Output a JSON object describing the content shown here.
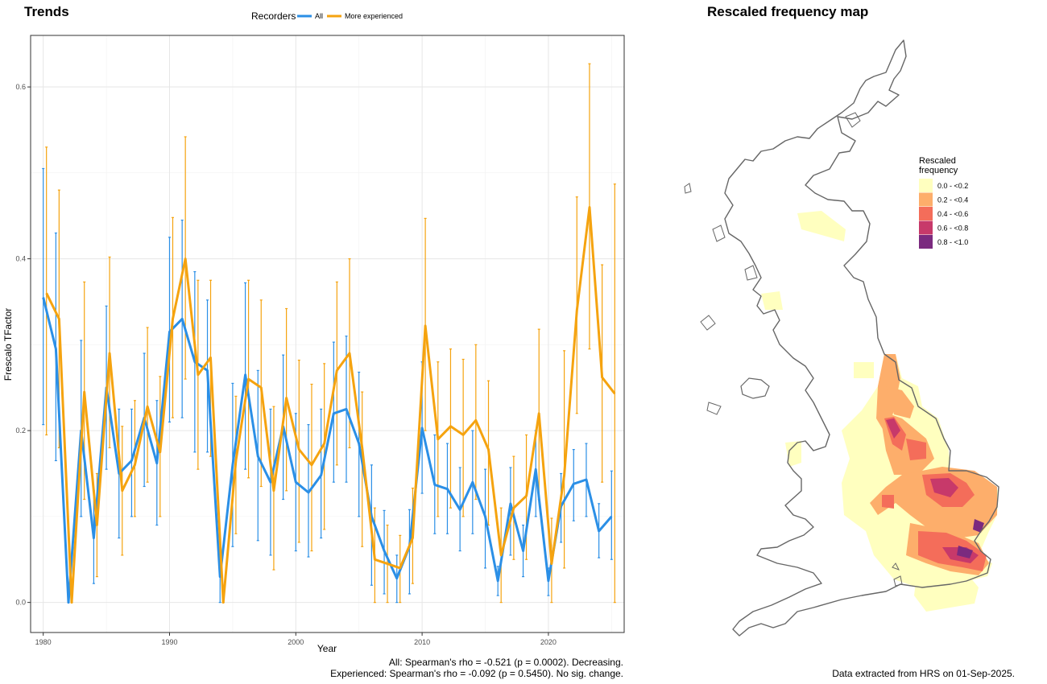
{
  "trends": {
    "title": "Trends",
    "caption_line1": "All: Spearman's rho = -0.521 (p = 0.0002). Decreasing.",
    "caption_line2": "Experienced: Spearman's rho = -0.092 (p = 0.5450). No sig. change."
  },
  "map": {
    "title": "Rescaled frequency map",
    "legend_title_line1": "Rescaled",
    "legend_title_line2": "frequency",
    "legend": [
      {
        "label": "0.0 - <0.2",
        "color": "#ffffbf"
      },
      {
        "label": "0.2 - <0.4",
        "color": "#fdae6b"
      },
      {
        "label": "0.4 - <0.6",
        "color": "#f46d5a"
      },
      {
        "label": "0.6 - <0.8",
        "color": "#c7396a"
      },
      {
        "label": "0.8 - <1.0",
        "color": "#7b2a7f"
      }
    ],
    "caption": "Data extracted from HRS on 01-Sep-2025."
  },
  "chart_data": {
    "type": "line",
    "xlabel": "Year",
    "ylabel": "Frescalo TFactor",
    "xlim": [
      1979,
      2026
    ],
    "ylim": [
      -0.035,
      0.66
    ],
    "x_ticks": [
      1980,
      1990,
      2000,
      2010,
      2020
    ],
    "y_ticks": [
      0.0,
      0.2,
      0.4,
      0.6
    ],
    "y_tick_labels": [
      "0.0",
      "0.2",
      "0.4",
      "0.6"
    ],
    "grid": true,
    "legend_title": "Recorders",
    "legend_position": "top",
    "x": [
      1980,
      1981,
      1982,
      1983,
      1984,
      1985,
      1986,
      1987,
      1988,
      1989,
      1990,
      1991,
      1992,
      1993,
      1994,
      1995,
      1996,
      1997,
      1998,
      1999,
      2000,
      2001,
      2002,
      2003,
      2004,
      2005,
      2006,
      2007,
      2008,
      2009,
      2010,
      2011,
      2012,
      2013,
      2014,
      2015,
      2016,
      2017,
      2018,
      2019,
      2020,
      2021,
      2022,
      2023,
      2024,
      2025
    ],
    "series": [
      {
        "name": "All",
        "color": "#2b8fe6",
        "values": [
          0.355,
          0.295,
          0.0,
          0.2,
          0.075,
          0.25,
          0.15,
          0.165,
          0.215,
          0.162,
          0.315,
          0.33,
          0.28,
          0.27,
          0.03,
          0.16,
          0.265,
          0.17,
          0.14,
          0.205,
          0.14,
          0.128,
          0.148,
          0.22,
          0.225,
          0.185,
          0.1,
          0.06,
          0.028,
          0.065,
          0.203,
          0.137,
          0.132,
          0.108,
          0.14,
          0.1,
          0.025,
          0.115,
          0.06,
          0.155,
          0.025,
          0.112,
          0.138,
          0.143,
          0.083,
          0.1
        ],
        "lower": [
          0.207,
          0.165,
          0.0,
          0.1,
          0.022,
          0.155,
          0.075,
          0.1,
          0.135,
          0.09,
          0.21,
          0.215,
          0.175,
          0.175,
          0.0,
          0.065,
          0.155,
          0.072,
          0.055,
          0.12,
          0.06,
          0.053,
          0.075,
          0.14,
          0.14,
          0.1,
          0.02,
          0.01,
          0.0,
          0.01,
          0.127,
          0.08,
          0.08,
          0.06,
          0.08,
          0.04,
          0.008,
          0.055,
          0.03,
          0.1,
          0.008,
          0.07,
          0.095,
          0.1,
          0.052,
          0.05
        ],
        "upper": [
          0.505,
          0.43,
          0.0,
          0.305,
          0.13,
          0.345,
          0.225,
          0.225,
          0.29,
          0.235,
          0.425,
          0.445,
          0.385,
          0.352,
          0.065,
          0.255,
          0.372,
          0.27,
          0.225,
          0.288,
          0.22,
          0.207,
          0.225,
          0.303,
          0.31,
          0.268,
          0.16,
          0.107,
          0.055,
          0.108,
          0.28,
          0.195,
          0.185,
          0.157,
          0.2,
          0.155,
          0.042,
          0.157,
          0.09,
          0.2,
          0.04,
          0.15,
          0.178,
          0.185,
          0.115,
          0.153
        ]
      },
      {
        "name": "More experienced",
        "color": "#f5a30f",
        "values": [
          0.36,
          0.33,
          0.0,
          0.245,
          0.09,
          0.29,
          0.13,
          0.16,
          0.228,
          0.175,
          0.33,
          0.4,
          0.265,
          0.285,
          0.0,
          0.165,
          0.26,
          0.25,
          0.13,
          0.238,
          0.178,
          0.16,
          0.185,
          0.27,
          0.29,
          0.18,
          0.05,
          0.045,
          0.04,
          0.075,
          0.322,
          0.19,
          0.205,
          0.195,
          0.212,
          0.178,
          0.055,
          0.11,
          0.124,
          0.22,
          0.045,
          0.148,
          0.34,
          0.46,
          0.262,
          0.243
        ],
        "lower": [
          0.195,
          0.18,
          0.0,
          0.12,
          0.03,
          0.18,
          0.055,
          0.1,
          0.14,
          0.1,
          0.215,
          0.26,
          0.155,
          0.17,
          0.0,
          0.08,
          0.145,
          0.135,
          0.038,
          0.13,
          0.07,
          0.06,
          0.085,
          0.16,
          0.18,
          0.065,
          0.0,
          0.0,
          0.0,
          0.022,
          0.2,
          0.1,
          0.11,
          0.1,
          0.12,
          0.09,
          0.0,
          0.05,
          0.05,
          0.12,
          0.0,
          0.04,
          0.22,
          0.295,
          0.14,
          0.0
        ],
        "upper": [
          0.53,
          0.48,
          0.0,
          0.373,
          0.15,
          0.402,
          0.205,
          0.235,
          0.32,
          0.263,
          0.448,
          0.542,
          0.375,
          0.375,
          0.0,
          0.24,
          0.375,
          0.352,
          0.228,
          0.342,
          0.282,
          0.254,
          0.278,
          0.373,
          0.4,
          0.245,
          0.11,
          0.09,
          0.078,
          0.133,
          0.447,
          0.28,
          0.295,
          0.283,
          0.3,
          0.258,
          0.11,
          0.17,
          0.195,
          0.318,
          0.098,
          0.293,
          0.472,
          0.627,
          0.393,
          0.487
        ]
      }
    ]
  }
}
